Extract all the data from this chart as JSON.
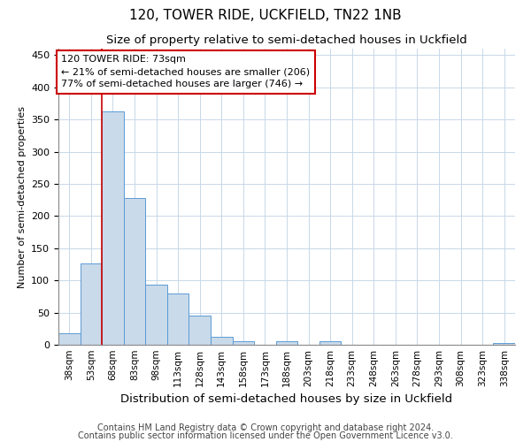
{
  "title1": "120, TOWER RIDE, UCKFIELD, TN22 1NB",
  "title2": "Size of property relative to semi-detached houses in Uckfield",
  "xlabel": "Distribution of semi-detached houses by size in Uckfield",
  "ylabel": "Number of semi-detached properties",
  "footer1": "Contains HM Land Registry data © Crown copyright and database right 2024.",
  "footer2": "Contains public sector information licensed under the Open Government Licence v3.0.",
  "annotation_title": "120 TOWER RIDE: 73sqm",
  "annotation_line1": "← 21% of semi-detached houses are smaller (206)",
  "annotation_line2": "77% of semi-detached houses are larger (746) →",
  "subject_value": 68,
  "bin_starts": [
    38,
    53,
    68,
    83,
    98,
    113,
    128,
    143,
    158,
    173,
    188,
    203,
    218,
    233,
    248,
    263,
    278,
    293,
    308,
    323,
    338
  ],
  "bin_labels": [
    "38sqm",
    "53sqm",
    "68sqm",
    "83sqm",
    "98sqm",
    "113sqm",
    "128sqm",
    "143sqm",
    "158sqm",
    "173sqm",
    "188sqm",
    "203sqm",
    "218sqm",
    "233sqm",
    "248sqm",
    "263sqm",
    "278sqm",
    "293sqm",
    "308sqm",
    "323sqm",
    "338sqm"
  ],
  "bar_heights": [
    18,
    127,
    363,
    228,
    93,
    79,
    45,
    13,
    5,
    0,
    5,
    0,
    5,
    0,
    0,
    0,
    0,
    0,
    0,
    0,
    3
  ],
  "bar_color": "#c9daea",
  "bar_edge_color": "#5b9bd5",
  "vline_color": "#cc0000",
  "grid_color": "#c8d8e8",
  "ylim": [
    0,
    460
  ],
  "yticks": [
    0,
    50,
    100,
    150,
    200,
    250,
    300,
    350,
    400,
    450
  ],
  "title1_fontsize": 11,
  "title2_fontsize": 9.5,
  "xlabel_fontsize": 9.5,
  "ylabel_fontsize": 8,
  "tick_fontsize": 8,
  "xtick_fontsize": 7.5,
  "annotation_fontsize": 8,
  "footer_fontsize": 7
}
